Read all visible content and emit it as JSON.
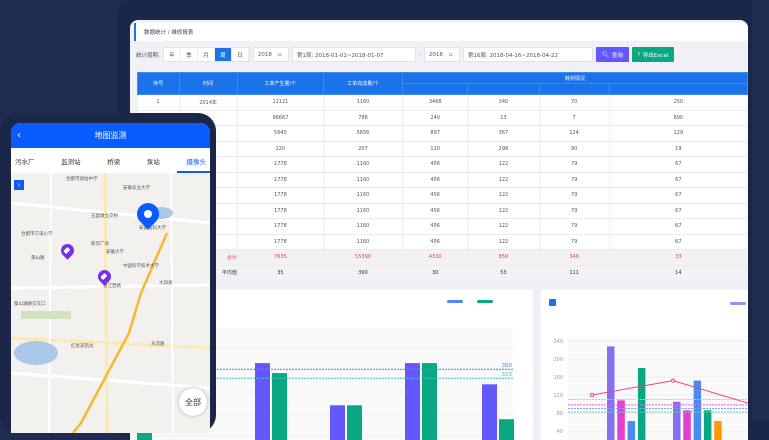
{
  "breadcrumb": "数据统计 / 维修报表",
  "filter": {
    "label": "统计周期:",
    "periods": [
      "年",
      "季",
      "月",
      "周",
      "日"
    ],
    "active": "周",
    "start_year": "2018",
    "start_week": "第1周: 2018-01-01~2018-01-07",
    "sep": "-",
    "end_year": "2018",
    "end_week": "第16周: 2018-04-16~2018-04-22",
    "query": "查询",
    "export": "导出Excel"
  },
  "table": {
    "headers": [
      "序号",
      "时间",
      "工单产生量/个",
      "工单完成量/个",
      "耗材情况"
    ],
    "rows": [
      [
        "1",
        "2014年",
        "11121",
        "1160",
        "3468",
        "340",
        "70",
        "250"
      ],
      [
        "",
        "",
        "96667",
        "786",
        "240",
        "13",
        "7",
        "690"
      ],
      [
        "",
        "",
        "5645",
        "5656",
        "897",
        "367",
        "124",
        "129"
      ],
      [
        "",
        "",
        "220",
        "207",
        "110",
        "298",
        "90",
        "19"
      ],
      [
        "",
        "",
        "1778",
        "1160",
        "456",
        "122",
        "79",
        "67"
      ],
      [
        "",
        "",
        "1778",
        "1160",
        "456",
        "122",
        "79",
        "67"
      ],
      [
        "",
        "",
        "1778",
        "1160",
        "456",
        "122",
        "79",
        "67"
      ],
      [
        "",
        "",
        "1778",
        "1160",
        "456",
        "122",
        "79",
        "67"
      ],
      [
        "",
        "",
        "1778",
        "1160",
        "456",
        "122",
        "79",
        "67"
      ],
      [
        "",
        "",
        "1778",
        "1160",
        "456",
        "122",
        "79",
        "67"
      ]
    ],
    "sum": [
      "",
      "合计",
      "7635",
      "55390",
      "4330",
      "859",
      "349",
      "33"
    ],
    "avg": [
      "",
      "平均值",
      "35",
      "390",
      "30",
      "53",
      "111",
      "14"
    ]
  },
  "phone": {
    "title": "地图监测",
    "tabs": [
      "污水厂",
      "监测站",
      "桥梁",
      "泵站",
      "摄像头"
    ],
    "active_tab": "摄像头",
    "all_button": "全部",
    "map_labels": [
      "合肥市琥珀中学",
      "安徽农业大学",
      "五里墩立交桥",
      "安徽医科大学",
      "合肥市宁溪小学",
      "新华广场",
      "安徽大学",
      "黄山路",
      "中国科学技术大学",
      "望江西路",
      "大润发",
      "蜀山湖路交叉口",
      "红星美凯龙",
      "东流路"
    ]
  },
  "chart_data": [
    {
      "type": "bar",
      "series": [
        {
          "color": "#6358ff",
          "values": [
            null,
            385,
            212,
            385,
            298
          ]
        },
        {
          "color": "#0aa882",
          "values": [
            298,
            344,
            212,
            385,
            155
          ]
        }
      ],
      "reference_lines": [
        {
          "value": 360,
          "label": "360",
          "color": "#4d8af0"
        },
        {
          "value": 323,
          "label": "323",
          "color": "#3fc4c8"
        }
      ],
      "grid": true
    },
    {
      "type": "bar+line",
      "yticks": [
        240,
        200,
        160,
        120,
        80,
        40
      ],
      "ylim": [
        0,
        240
      ],
      "series": [
        {
          "color": "#8470f0",
          "values": [
            228,
            105
          ]
        },
        {
          "color": "#e040d0",
          "values": [
            108,
            86
          ]
        },
        {
          "color": "#4d8af0",
          "values": [
            62,
            152
          ]
        },
        {
          "color": "#0aa882",
          "values": [
            180,
            86
          ]
        },
        {
          "color": "#ff9800",
          "values": [
            null,
            62
          ]
        }
      ],
      "line": {
        "color": "#f0457a",
        "values": [
          120,
          152,
          100
        ]
      },
      "reference_lines": [
        {
          "value": 110,
          "color": "#c9b8f5"
        },
        {
          "value": 98,
          "color": "#e060e0"
        },
        {
          "value": 90,
          "color": "#7aa6f5"
        },
        {
          "value": 82,
          "color": "#6fcfa8"
        }
      ],
      "grid": true
    }
  ]
}
